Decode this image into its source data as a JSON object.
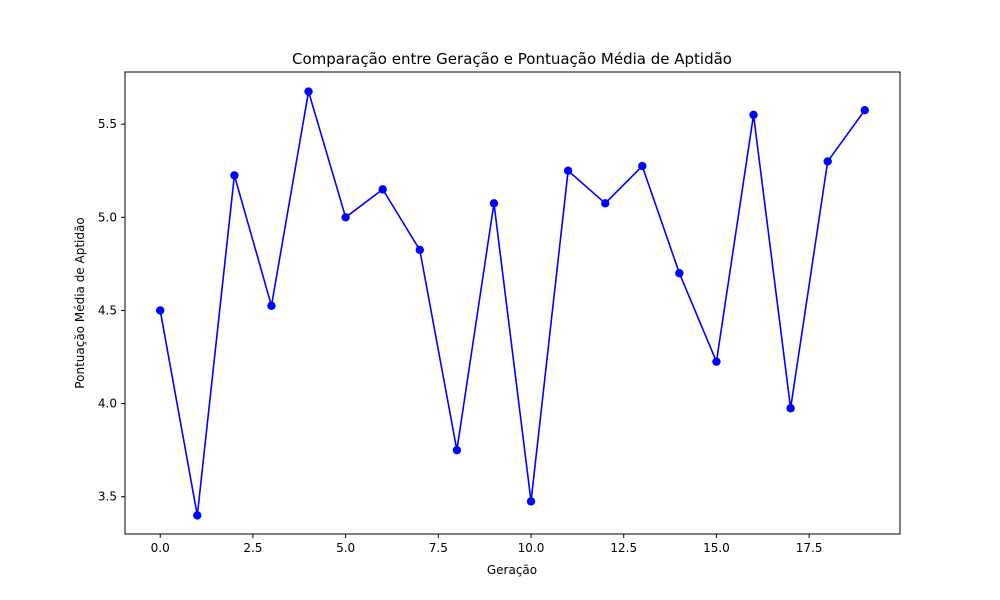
{
  "chart_data": {
    "type": "line",
    "title": "Comparação entre Geração e Pontuação Média de Aptidão",
    "xlabel": "Geração",
    "ylabel": "Pontuação Média de Aptidão",
    "xlim": [
      -0.95,
      19.95
    ],
    "ylim": [
      3.3,
      5.78
    ],
    "x_ticks": [
      0.0,
      2.5,
      5.0,
      7.5,
      10.0,
      12.5,
      15.0,
      17.5
    ],
    "x_tick_labels": [
      "0.0",
      "2.5",
      "5.0",
      "7.5",
      "10.0",
      "12.5",
      "15.0",
      "17.5"
    ],
    "y_ticks": [
      3.5,
      4.0,
      4.5,
      5.0,
      5.5
    ],
    "y_tick_labels": [
      "3.5",
      "4.0",
      "4.5",
      "5.0",
      "5.5"
    ],
    "grid": false,
    "series": [
      {
        "name": "Pontuação Média de Aptidão",
        "color": "#0000ff",
        "marker": "circle",
        "x": [
          0,
          1,
          2,
          3,
          4,
          5,
          6,
          7,
          8,
          9,
          10,
          11,
          12,
          13,
          14,
          15,
          16,
          17,
          18,
          19
        ],
        "y": [
          4.5,
          3.4,
          5.225,
          4.525,
          5.675,
          5.0,
          5.15,
          4.825,
          3.75,
          5.075,
          3.475,
          5.25,
          5.075,
          5.275,
          4.7,
          4.225,
          5.55,
          3.975,
          5.3,
          5.575
        ]
      }
    ]
  }
}
